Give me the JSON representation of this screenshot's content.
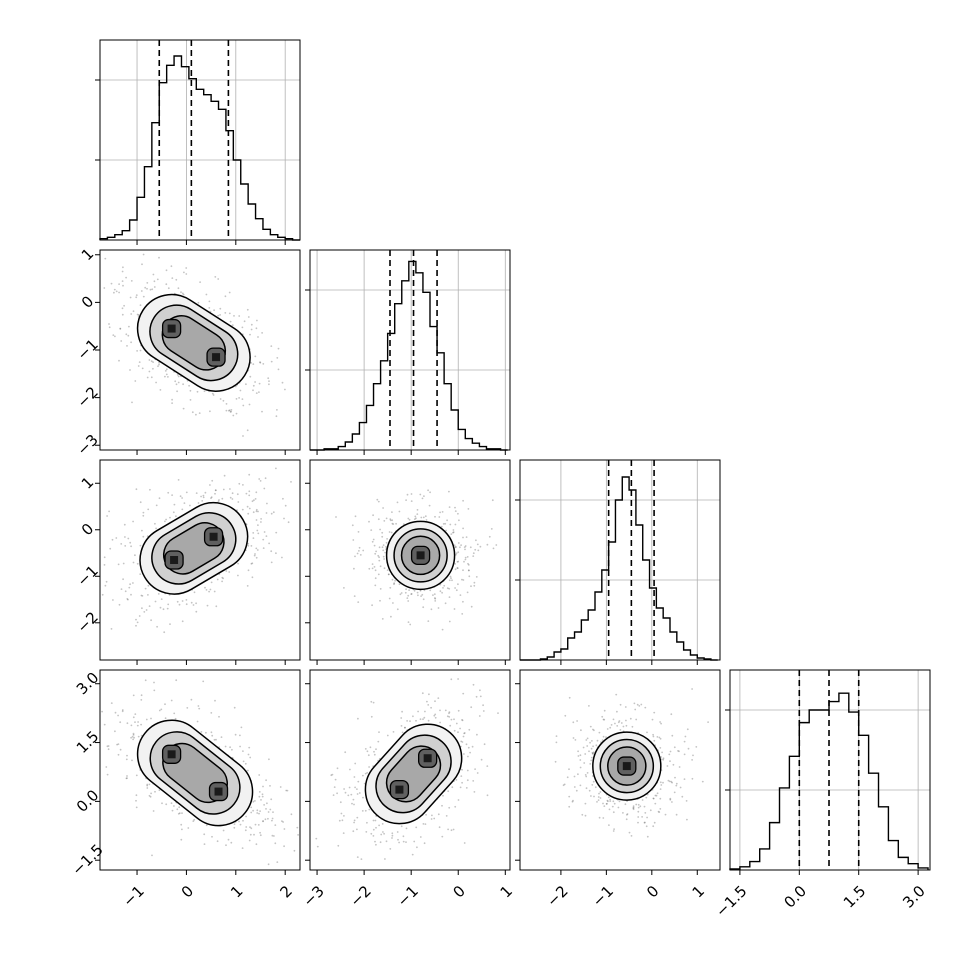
{
  "chart_data": {
    "type": "corner",
    "title": "",
    "parameters": [
      "",
      "",
      "",
      ""
    ],
    "colors": {
      "line": "#000000",
      "grid": "#b0b0b0",
      "scatter": "#555555",
      "frame": "#000000"
    },
    "grid": true,
    "axis_ranges": [
      [
        -1.75,
        2.3
      ],
      [
        -3.15,
        1.1
      ],
      [
        -2.9,
        1.5
      ],
      [
        -1.75,
        3.3
      ]
    ],
    "ticks": [
      {
        "values": [
          -1,
          0,
          1,
          2
        ],
        "labels": [
          "−1",
          "0",
          "1",
          "2"
        ]
      },
      {
        "values": [
          -3,
          -2,
          -1,
          0,
          1
        ],
        "labels": [
          "−3",
          "−2",
          "−1",
          "0",
          "1"
        ]
      },
      {
        "values": [
          -2,
          -1,
          0,
          1
        ],
        "labels": [
          "−2",
          "−1",
          "0",
          "1"
        ]
      },
      {
        "values": [
          -1.5,
          0,
          1.5,
          3
        ],
        "labels": [
          "−1.5",
          "0.0",
          "1.5",
          "3.0"
        ]
      }
    ],
    "y_ticks": [
      null,
      {
        "values": [
          -3,
          -2,
          -1,
          0,
          1
        ],
        "labels": [
          "−3",
          "−2",
          "−1",
          "0",
          "1"
        ]
      },
      {
        "values": [
          -2,
          -1,
          0,
          1
        ],
        "labels": [
          "−2",
          "−1",
          "0",
          "1"
        ]
      },
      {
        "values": [
          -1.5,
          0,
          1.5,
          3
        ],
        "labels": [
          "−1.5",
          "0.0",
          "1.5",
          "3.0"
        ]
      }
    ],
    "histograms": [
      {
        "bin_edges": [
          -1.75,
          -1.6,
          -1.45,
          -1.3,
          -1.15,
          -1.0,
          -0.85,
          -0.7,
          -0.55,
          -0.4,
          -0.25,
          -0.1,
          0.05,
          0.2,
          0.35,
          0.5,
          0.65,
          0.8,
          0.95,
          1.1,
          1.25,
          1.4,
          1.55,
          1.7,
          1.85,
          2.0,
          2.15,
          2.3
        ],
        "counts": [
          1,
          2,
          4,
          7,
          15,
          32,
          55,
          88,
          118,
          131,
          138,
          130,
          121,
          113,
          109,
          104,
          98,
          82,
          60,
          42,
          27,
          16,
          8,
          4,
          2,
          1,
          0
        ],
        "ymax": 150,
        "quantiles": [
          -0.55,
          0.1,
          0.85
        ]
      },
      {
        "bin_edges": [
          -3.15,
          -3.0,
          -2.85,
          -2.7,
          -2.55,
          -2.4,
          -2.25,
          -2.1,
          -1.95,
          -1.8,
          -1.65,
          -1.5,
          -1.35,
          -1.2,
          -1.05,
          -0.9,
          -0.75,
          -0.6,
          -0.45,
          -0.3,
          -0.15,
          0.0,
          0.15,
          0.3,
          0.45,
          0.6,
          0.75,
          0.9,
          1.05
        ],
        "counts": [
          0,
          0,
          1,
          1,
          3,
          7,
          14,
          24,
          39,
          58,
          78,
          102,
          128,
          148,
          165,
          155,
          138,
          108,
          85,
          58,
          35,
          18,
          10,
          6,
          3,
          1,
          1,
          0
        ],
        "ymax": 175,
        "quantiles": [
          -1.45,
          -0.95,
          -0.45
        ]
      },
      {
        "bin_edges": [
          -2.9,
          -2.75,
          -2.6,
          -2.45,
          -2.3,
          -2.15,
          -2.0,
          -1.85,
          -1.7,
          -1.55,
          -1.4,
          -1.25,
          -1.1,
          -0.95,
          -0.8,
          -0.65,
          -0.5,
          -0.35,
          -0.2,
          -0.05,
          0.1,
          0.25,
          0.4,
          0.55,
          0.7,
          0.85,
          1.0,
          1.15,
          1.3,
          1.45
        ],
        "counts": [
          0,
          0,
          0,
          1,
          3,
          8,
          11,
          22,
          28,
          40,
          50,
          68,
          90,
          118,
          160,
          183,
          170,
          135,
          100,
          72,
          52,
          42,
          28,
          18,
          10,
          5,
          2,
          1,
          0
        ],
        "ymax": 200,
        "quantiles": [
          -0.95,
          -0.45,
          0.05
        ]
      },
      {
        "bin_edges": [
          -1.75,
          -1.5,
          -1.25,
          -1.0,
          -0.75,
          -0.5,
          -0.25,
          0.0,
          0.25,
          0.5,
          0.75,
          1.0,
          1.25,
          1.5,
          1.75,
          2.0,
          2.25,
          2.5,
          2.75,
          3.0,
          3.25
        ],
        "counts": [
          1,
          3,
          8,
          20,
          45,
          78,
          108,
          140,
          152,
          152,
          160,
          168,
          150,
          128,
          92,
          60,
          28,
          12,
          6,
          2
        ],
        "ymax": 190,
        "quantiles": [
          0.0,
          0.75,
          1.5
        ]
      }
    ],
    "pairs": [
      {
        "row": 1,
        "col": 0,
        "peaks": [
          {
            "x": -0.3,
            "y": -0.55
          },
          {
            "x": 0.6,
            "y": -1.15
          }
        ],
        "pattern": "two-peak"
      },
      {
        "row": 2,
        "col": 0,
        "peaks": [
          {
            "x": -0.25,
            "y": -0.65
          },
          {
            "x": 0.55,
            "y": -0.15
          }
        ],
        "pattern": "two-peak"
      },
      {
        "row": 2,
        "col": 1,
        "peaks": [
          {
            "x": -0.8,
            "y": -0.55
          }
        ],
        "pattern": "single-peak"
      },
      {
        "row": 3,
        "col": 0,
        "peaks": [
          {
            "x": -0.3,
            "y": 1.2
          },
          {
            "x": 0.65,
            "y": 0.25
          }
        ],
        "pattern": "two-peak"
      },
      {
        "row": 3,
        "col": 1,
        "peaks": [
          {
            "x": -1.25,
            "y": 0.3
          },
          {
            "x": -0.65,
            "y": 1.1
          }
        ],
        "pattern": "two-peak"
      },
      {
        "row": 3,
        "col": 2,
        "peaks": [
          {
            "x": -0.55,
            "y": 0.9
          }
        ],
        "pattern": "single-peak"
      }
    ]
  }
}
